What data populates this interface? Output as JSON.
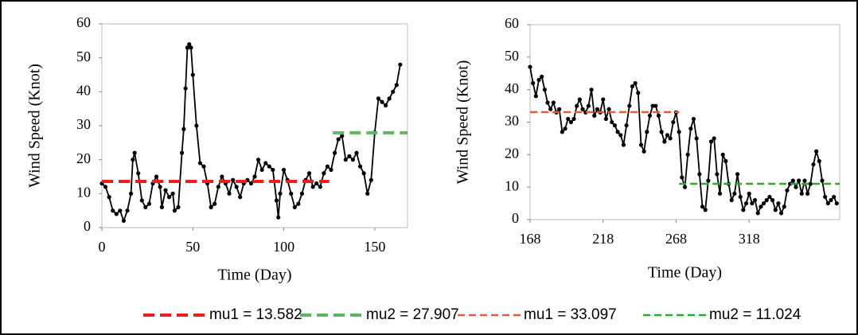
{
  "chart_data": [
    {
      "type": "line",
      "xlabel": "Time (Day)",
      "ylabel": "Wind Speed (Knot)",
      "xlim": [
        0,
        168
      ],
      "ylim": [
        0,
        60
      ],
      "xticks": [
        0,
        50,
        100,
        150
      ],
      "yticks": [
        0,
        10,
        20,
        30,
        40,
        50,
        60
      ],
      "series": [
        {
          "color": "#000000",
          "marker": true,
          "x": [
            0,
            2,
            4,
            6,
            8,
            10,
            12,
            14,
            16,
            17,
            18,
            20,
            22,
            24,
            26,
            28,
            30,
            32,
            33,
            35,
            37,
            39,
            40,
            42,
            44,
            45,
            46,
            47,
            48,
            49,
            50,
            52,
            54,
            56,
            58,
            60,
            62,
            64,
            66,
            68,
            70,
            72,
            74,
            76,
            78,
            80,
            82,
            84,
            86,
            88,
            90,
            92,
            94,
            96,
            97,
            98,
            100,
            102,
            104,
            106,
            108,
            110,
            112,
            114,
            116,
            118,
            120,
            122,
            124,
            126,
            128,
            130,
            132,
            134,
            136,
            138,
            140,
            142,
            144,
            146,
            148,
            150,
            152,
            154,
            156,
            158,
            160,
            162,
            164
          ],
          "values": [
            13,
            12,
            9,
            5,
            4,
            5,
            2,
            5,
            10,
            20,
            22,
            16,
            8,
            6,
            7,
            13,
            15,
            12,
            6,
            11,
            9,
            10,
            5,
            6,
            22,
            29,
            41,
            53,
            54,
            53,
            45,
            30,
            19,
            18,
            13,
            6,
            7,
            12,
            15,
            13,
            10,
            14,
            12,
            9,
            13,
            14,
            13,
            15,
            20,
            17,
            19,
            18,
            17,
            8,
            3,
            10,
            17,
            14,
            10,
            6,
            7,
            10,
            14,
            16,
            12,
            13,
            12,
            16,
            18,
            17,
            22,
            26,
            27,
            20,
            21,
            20,
            22,
            18,
            16,
            10,
            14,
            28,
            38,
            37,
            36,
            38,
            40,
            42,
            48
          ]
        },
        {
          "name": "mu1 = 13.582",
          "color": "#ee1c1c",
          "dash": "dashed",
          "x": [
            0,
            125
          ],
          "values": [
            13.582,
            13.582
          ]
        },
        {
          "name": "mu2 = 27.907",
          "color": "#5cb85c",
          "dash": "dashed",
          "x": [
            127,
            168
          ],
          "values": [
            27.907,
            27.907
          ]
        }
      ]
    },
    {
      "type": "line",
      "xlabel": "Time (Day)",
      "ylabel": "Wind Speed (Knot)",
      "xlim": [
        168,
        380
      ],
      "ylim": [
        0,
        60
      ],
      "xticks": [
        168,
        218,
        268,
        318
      ],
      "yticks": [
        0,
        10,
        20,
        30,
        40,
        50,
        60
      ],
      "series": [
        {
          "color": "#000000",
          "marker": true,
          "x": [
            168,
            170,
            172,
            174,
            176,
            178,
            180,
            182,
            184,
            186,
            188,
            190,
            192,
            194,
            196,
            198,
            200,
            202,
            204,
            206,
            208,
            210,
            212,
            214,
            216,
            218,
            220,
            222,
            224,
            226,
            228,
            230,
            232,
            234,
            236,
            238,
            240,
            242,
            244,
            246,
            248,
            250,
            252,
            254,
            256,
            258,
            260,
            262,
            264,
            266,
            268,
            270,
            272,
            274,
            276,
            278,
            280,
            282,
            284,
            286,
            288,
            290,
            292,
            294,
            296,
            298,
            300,
            302,
            304,
            306,
            308,
            310,
            312,
            314,
            316,
            318,
            320,
            322,
            324,
            326,
            328,
            330,
            332,
            334,
            336,
            338,
            340,
            342,
            344,
            346,
            348,
            350,
            352,
            354,
            356,
            358,
            360,
            362,
            364,
            366,
            368,
            370,
            372,
            374,
            376,
            378
          ],
          "values": [
            47,
            42,
            38,
            43,
            44,
            40,
            36,
            34,
            36,
            33,
            34,
            27,
            28,
            31,
            30,
            31,
            35,
            37,
            34,
            33,
            35,
            40,
            32,
            34,
            33,
            37,
            31,
            34,
            30,
            29,
            27,
            26,
            23,
            29,
            35,
            41,
            42,
            39,
            23,
            21,
            27,
            32,
            35,
            35,
            32,
            27,
            24,
            26,
            25,
            30,
            33,
            27,
            13,
            10,
            20,
            28,
            31,
            25,
            14,
            4,
            3,
            12,
            24,
            25,
            14,
            8,
            20,
            18,
            11,
            6,
            8,
            14,
            7,
            3,
            5,
            8,
            5,
            6,
            2,
            4,
            5,
            6,
            7,
            6,
            3,
            5,
            2,
            4,
            9,
            11,
            12,
            10,
            12,
            8,
            12,
            8,
            11,
            17,
            21,
            18,
            12,
            7,
            5,
            6,
            7,
            5
          ]
        },
        {
          "name": "mu1 = 33.097",
          "color": "#ee5a2a",
          "dash": "dashed",
          "x": [
            168,
            270
          ],
          "values": [
            33.097,
            33.097
          ]
        },
        {
          "name": "mu2 = 11.024",
          "color": "#22b022",
          "dash": "dashed",
          "x": [
            270,
            380
          ],
          "values": [
            11.024,
            11.024
          ]
        }
      ]
    }
  ]
}
